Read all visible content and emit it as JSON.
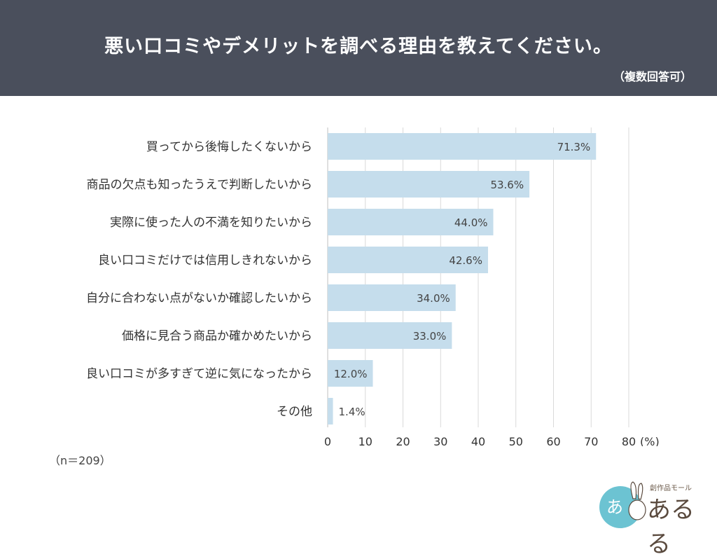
{
  "header": {
    "title": "悪い口コミやデメリットを調べる理由を教えてください。",
    "subtitle": "（複数回答可）"
  },
  "note": "（n＝209）",
  "logo": {
    "small_text": "創作品モール",
    "main_text": "あるる",
    "badge_text": "あ"
  },
  "colors": {
    "header_bg": "#4a4f5c",
    "bar": "#c5ddec",
    "grid": "#d9d9d9",
    "logo_circle": "#6cc3d2"
  },
  "chart_data": {
    "type": "bar",
    "orientation": "horizontal",
    "categories": [
      "買ってから後悔したくないから",
      "商品の欠点も知ったうえで判断したいから",
      "実際に使った人の不満を知りたいから",
      "良い口コミだけでは信用しきれないから",
      "自分に合わない点がないか確認したいから",
      "価格に見合う商品か確かめたいから",
      "良い口コミが多すぎて逆に気になったから",
      "その他"
    ],
    "values": [
      71.3,
      53.6,
      44.0,
      42.6,
      34.0,
      33.0,
      12.0,
      1.4
    ],
    "value_labels": [
      "71.3%",
      "53.6%",
      "44.0%",
      "42.6%",
      "34.0%",
      "33.0%",
      "12.0%",
      "1.4%"
    ],
    "xticks": [
      "0",
      "10",
      "20",
      "30",
      "40",
      "50",
      "60",
      "70",
      "80"
    ],
    "xlim": [
      0,
      80
    ],
    "xunit": "(%)",
    "grid": true
  }
}
